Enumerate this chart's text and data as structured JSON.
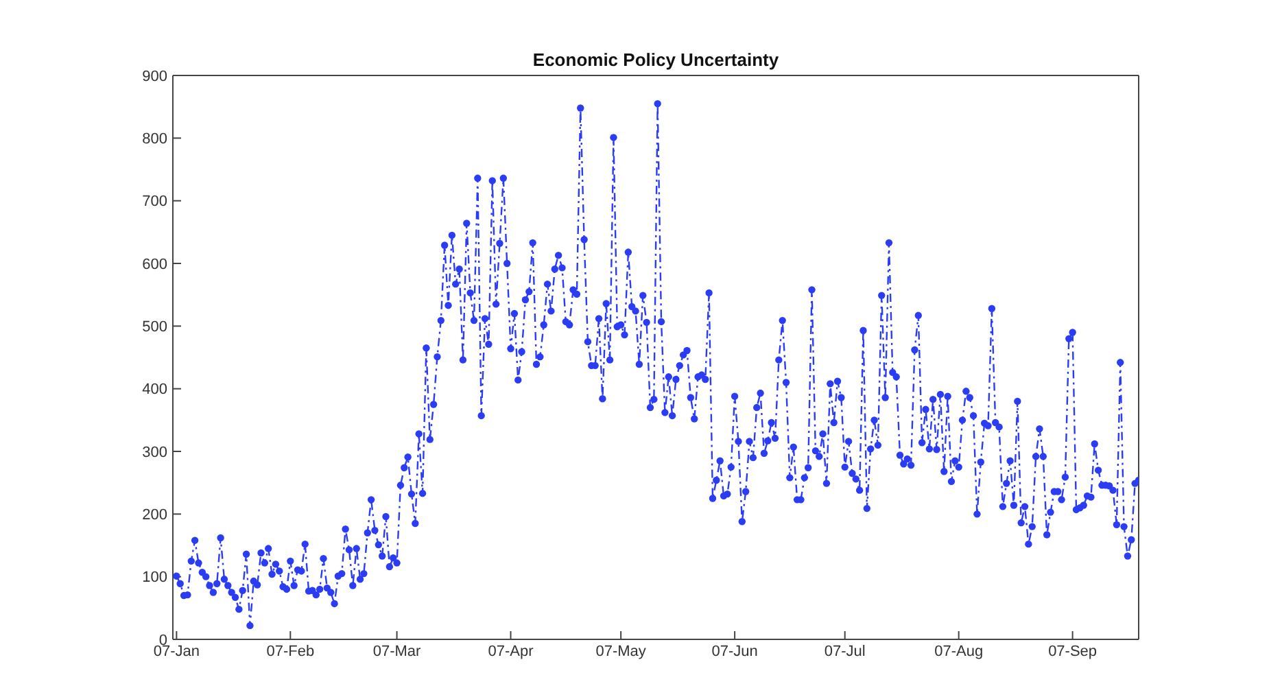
{
  "chart_data": {
    "type": "line",
    "title": "Economic Policy Uncertainty",
    "x": [
      "--01-07",
      "--01-08",
      "--01-09",
      "--01-10",
      "--01-11",
      "--01-12",
      "--01-13",
      "--01-14",
      "--01-15",
      "--01-16",
      "--01-17",
      "--01-18",
      "--01-19",
      "--01-20",
      "--01-21",
      "--01-22",
      "--01-23",
      "--01-24",
      "--01-25",
      "--01-26",
      "--01-27",
      "--01-28",
      "--01-29",
      "--01-30",
      "--01-31",
      "--02-01",
      "--02-02",
      "--02-03",
      "--02-04",
      "--02-05",
      "--02-06",
      "--02-07",
      "--02-08",
      "--02-09",
      "--02-10",
      "--02-11",
      "--02-12",
      "--02-13",
      "--02-14",
      "--02-15",
      "--02-16",
      "--02-17",
      "--02-18",
      "--02-19",
      "--02-20",
      "--02-21",
      "--02-22",
      "--02-23",
      "--02-24",
      "--02-25",
      "--02-26",
      "--02-27",
      "--02-28",
      "--02-29",
      "--03-01",
      "--03-02",
      "--03-03",
      "--03-04",
      "--03-05",
      "--03-06",
      "--03-07",
      "--03-08",
      "--03-09",
      "--03-10",
      "--03-11",
      "--03-12",
      "--03-13",
      "--03-14",
      "--03-15",
      "--03-16",
      "--03-17",
      "--03-18",
      "--03-19",
      "--03-20",
      "--03-21",
      "--03-22",
      "--03-23",
      "--03-24",
      "--03-25",
      "--03-26",
      "--03-27",
      "--03-28",
      "--03-29",
      "--03-30",
      "--03-31",
      "--04-01",
      "--04-02",
      "--04-03",
      "--04-04",
      "--04-05",
      "--04-06",
      "--04-07",
      "--04-08",
      "--04-09",
      "--04-10",
      "--04-11",
      "--04-12",
      "--04-13",
      "--04-14",
      "--04-15",
      "--04-16",
      "--04-17",
      "--04-18",
      "--04-19",
      "--04-20",
      "--04-21",
      "--04-22",
      "--04-23",
      "--04-24",
      "--04-25",
      "--04-26",
      "--04-27",
      "--04-28",
      "--04-29",
      "--04-30",
      "--05-01",
      "--05-02",
      "--05-03",
      "--05-04",
      "--05-05",
      "--05-06",
      "--05-07",
      "--05-08",
      "--05-09",
      "--05-10",
      "--05-11",
      "--05-12",
      "--05-13",
      "--05-14",
      "--05-15",
      "--05-16",
      "--05-17",
      "--05-18",
      "--05-19",
      "--05-20",
      "--05-21",
      "--05-22",
      "--05-23",
      "--05-24",
      "--05-25",
      "--05-26",
      "--05-27",
      "--05-28",
      "--05-29",
      "--05-30",
      "--05-31",
      "--06-01",
      "--06-02",
      "--06-03",
      "--06-04",
      "--06-05",
      "--06-06",
      "--06-07",
      "--06-08",
      "--06-09",
      "--06-10",
      "--06-11",
      "--06-12",
      "--06-13",
      "--06-14",
      "--06-15",
      "--06-16",
      "--06-17",
      "--06-18",
      "--06-19",
      "--06-20",
      "--06-21",
      "--06-22",
      "--06-23",
      "--06-24",
      "--06-25",
      "--06-26",
      "--06-27",
      "--06-28",
      "--06-29",
      "--06-30",
      "--07-01",
      "--07-02",
      "--07-03",
      "--07-04",
      "--07-05",
      "--07-06",
      "--07-07",
      "--07-08",
      "--07-09",
      "--07-10",
      "--07-11",
      "--07-12",
      "--07-13",
      "--07-14",
      "--07-15",
      "--07-16",
      "--07-17",
      "--07-18",
      "--07-19",
      "--07-20",
      "--07-21",
      "--07-22",
      "--07-23",
      "--07-24",
      "--07-25",
      "--07-26",
      "--07-27",
      "--07-28",
      "--07-29",
      "--07-30",
      "--07-31",
      "--08-01",
      "--08-02",
      "--08-03",
      "--08-04",
      "--08-05",
      "--08-06",
      "--08-07",
      "--08-08",
      "--08-09",
      "--08-10",
      "--08-11",
      "--08-12",
      "--08-13",
      "--08-14",
      "--08-15",
      "--08-16",
      "--08-17",
      "--08-18",
      "--08-19",
      "--08-20",
      "--08-21",
      "--08-22",
      "--08-23",
      "--08-24",
      "--08-25",
      "--08-26",
      "--08-27",
      "--08-28",
      "--08-29",
      "--08-30",
      "--08-31",
      "--09-01",
      "--09-02",
      "--09-03",
      "--09-04",
      "--09-05",
      "--09-06",
      "--09-07",
      "--09-08",
      "--09-09",
      "--09-10",
      "--09-11",
      "--09-12",
      "--09-13",
      "--09-14",
      "--09-15",
      "--09-16",
      "--09-17",
      "--09-18",
      "--09-19",
      "--09-20",
      "--09-21",
      "--09-22",
      "--09-23",
      "--09-24",
      "--09-25"
    ],
    "series": [
      {
        "color": "#2b3cf5",
        "values": [
          101,
          89,
          70,
          71,
          125,
          158,
          122,
          107,
          100,
          86,
          75,
          89,
          162,
          96,
          86,
          75,
          67,
          48,
          78,
          136,
          22,
          93,
          87,
          138,
          122,
          145,
          104,
          120,
          109,
          84,
          80,
          125,
          86,
          111,
          109,
          152,
          77,
          78,
          71,
          80,
          129,
          82,
          75,
          57,
          101,
          105,
          176,
          143,
          86,
          145,
          96,
          105,
          170,
          223,
          174,
          151,
          133,
          196,
          116,
          130,
          122,
          246,
          274,
          291,
          232,
          185,
          328,
          233,
          465,
          319,
          375,
          451,
          509,
          629,
          533,
          645,
          567,
          591,
          446,
          664,
          553,
          509,
          736,
          357,
          512,
          471,
          732,
          535,
          632,
          736,
          600,
          464,
          520,
          414,
          459,
          542,
          555,
          633,
          439,
          451,
          502,
          567,
          524,
          591,
          613,
          593,
          507,
          502,
          558,
          551,
          848,
          638,
          475,
          437,
          437,
          512,
          384,
          536,
          446,
          801,
          499,
          502,
          486,
          618,
          531,
          524,
          439,
          549,
          506,
          370,
          383,
          855,
          507,
          362,
          419,
          357,
          415,
          437,
          454,
          461,
          386,
          352,
          419,
          422,
          415,
          553,
          225,
          254,
          285,
          229,
          232,
          275,
          388,
          316,
          188,
          236,
          316,
          290,
          370,
          393,
          297,
          317,
          346,
          321,
          446,
          509,
          410,
          258,
          307,
          223,
          223,
          258,
          274,
          558,
          301,
          292,
          328,
          249,
          408,
          346,
          412,
          386,
          275,
          316,
          265,
          256,
          238,
          493,
          209,
          304,
          350,
          310,
          549,
          386,
          633,
          426,
          419,
          294,
          280,
          288,
          278,
          462,
          517,
          314,
          367,
          304,
          383,
          303,
          391,
          268,
          388,
          252,
          285,
          275,
          350,
          396,
          386,
          357,
          200,
          283,
          345,
          341,
          528,
          346,
          339,
          212,
          249,
          285,
          214,
          380,
          186,
          212,
          152,
          180,
          292,
          336,
          292,
          167,
          203,
          236,
          236,
          223,
          259,
          480,
          490,
          207,
          210,
          214,
          229,
          227,
          312,
          270,
          246,
          246,
          245,
          238,
          183,
          442,
          180,
          133,
          159,
          249,
          254
        ]
      }
    ],
    "xlim": [
      "--01-06",
      "--09-25"
    ],
    "xticks": [
      {
        "value": "--01-07",
        "label": "07-Jan"
      },
      {
        "value": "--02-07",
        "label": "07-Feb"
      },
      {
        "value": "--03-07",
        "label": "07-Mar"
      },
      {
        "value": "--04-07",
        "label": "07-Apr"
      },
      {
        "value": "--05-07",
        "label": "07-May"
      },
      {
        "value": "--06-07",
        "label": "07-Jun"
      },
      {
        "value": "--07-07",
        "label": "07-Jul"
      },
      {
        "value": "--08-07",
        "label": "07-Aug"
      },
      {
        "value": "--09-07",
        "label": "07-Sep"
      }
    ],
    "ylim": [
      0,
      900
    ],
    "yticks": [
      0,
      100,
      200,
      300,
      400,
      500,
      600,
      700,
      800,
      900
    ],
    "marker": "circle",
    "line_style": "dashed"
  }
}
